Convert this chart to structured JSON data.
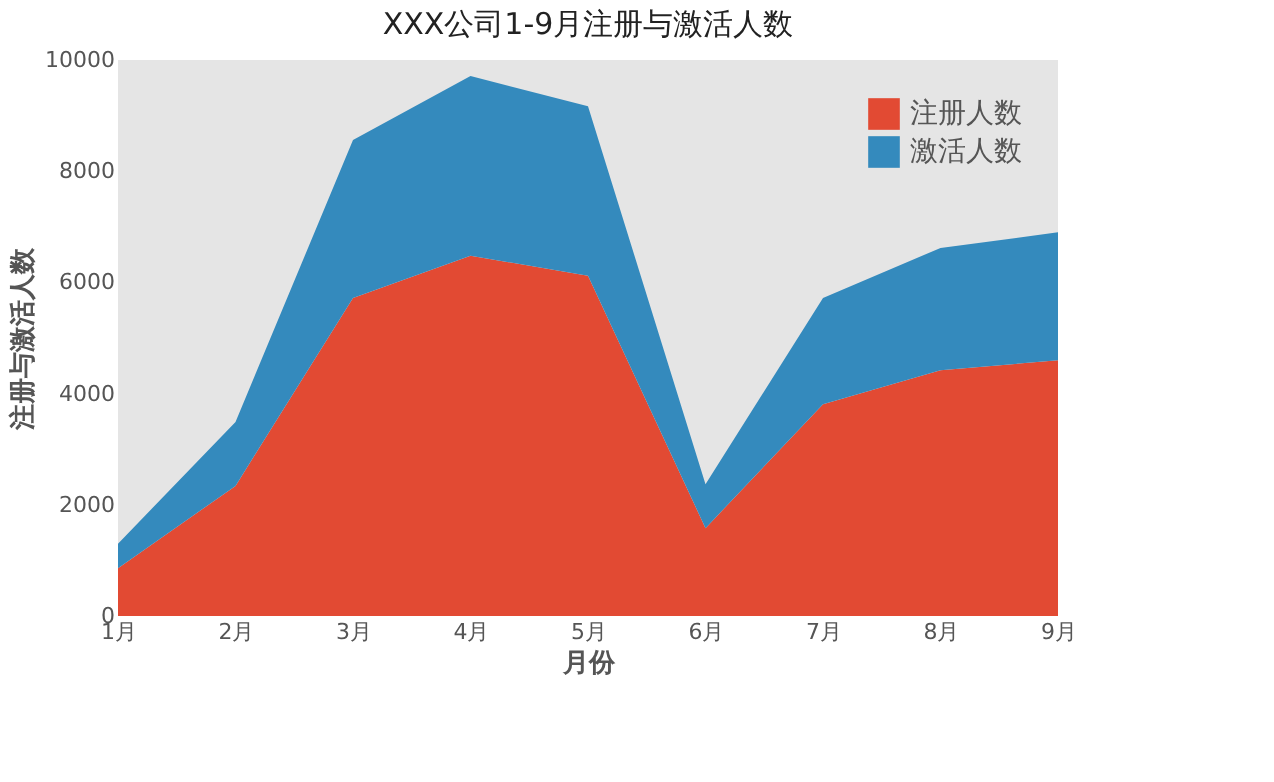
{
  "chart_data": {
    "type": "area",
    "stacked": true,
    "title": "XXX公司1-9月注册与激活人数",
    "xlabel": "月份",
    "ylabel": "注册与激活人数",
    "categories": [
      "1月",
      "2月",
      "3月",
      "4月",
      "5月",
      "6月",
      "7月",
      "8月",
      "9月"
    ],
    "series": [
      {
        "name": "注册人数",
        "color": "#e24a33",
        "values": [
          860,
          2340,
          5720,
          6480,
          6120,
          1580,
          3810,
          4420,
          4600
        ]
      },
      {
        "name": "激活人数",
        "color": "#348abd",
        "values": [
          440,
          1150,
          2840,
          3230,
          3050,
          790,
          1910,
          2200,
          2300
        ]
      }
    ],
    "ylim": [
      0,
      10000
    ],
    "yticks": [
      0,
      2000,
      4000,
      6000,
      8000,
      10000
    ],
    "grid": false,
    "legend": "top right"
  }
}
